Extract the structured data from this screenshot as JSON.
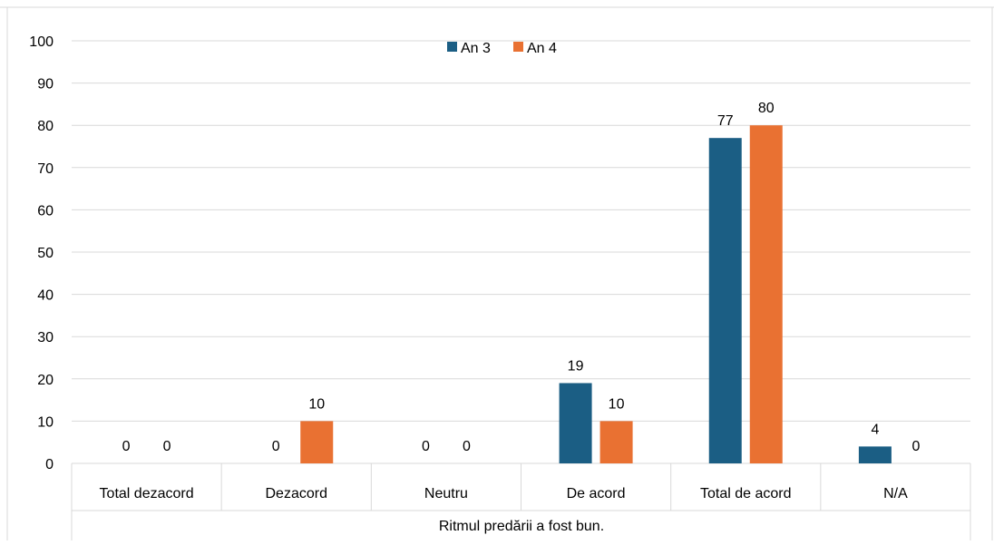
{
  "colors": {
    "an3": "#1b5e84",
    "an4": "#e97132",
    "grid": "#d9d9d9",
    "axis": "#d9d9d9",
    "frame": "#d9d9d9"
  },
  "chart_data": {
    "type": "bar",
    "title": "",
    "xlabel": "Ritmul predării a fost bun.",
    "ylabel": "",
    "ylim": [
      0,
      100
    ],
    "yticks": [
      0,
      10,
      20,
      30,
      40,
      50,
      60,
      70,
      80,
      90,
      100
    ],
    "categories": [
      "Total dezacord",
      "Dezacord",
      "Neutru",
      "De acord",
      "Total de acord",
      "N/A"
    ],
    "series": [
      {
        "name": "An 3",
        "values": [
          0,
          0,
          0,
          19,
          77,
          4
        ]
      },
      {
        "name": "An 4",
        "values": [
          0,
          10,
          0,
          10,
          80,
          0
        ]
      }
    ],
    "legend_position": "top",
    "grid": true,
    "data_labels": true
  }
}
